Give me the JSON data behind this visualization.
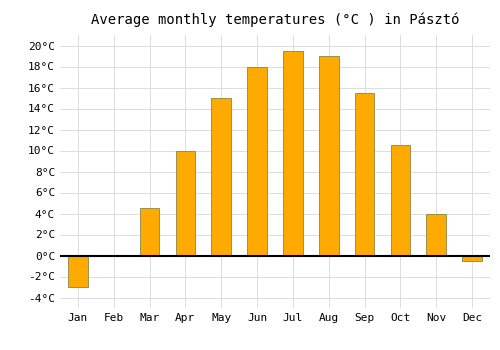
{
  "title": "Average monthly temperatures (°C ) in Pásztó",
  "months": [
    "Jan",
    "Feb",
    "Mar",
    "Apr",
    "May",
    "Jun",
    "Jul",
    "Aug",
    "Sep",
    "Oct",
    "Nov",
    "Dec"
  ],
  "values": [
    -3.0,
    0.0,
    4.5,
    10.0,
    15.0,
    18.0,
    19.5,
    19.0,
    15.5,
    10.5,
    4.0,
    -0.5
  ],
  "bar_color": "#FFAA00",
  "bar_edge_color": "#888844",
  "ylim": [
    -5,
    21
  ],
  "yticks": [
    -4,
    -2,
    0,
    2,
    4,
    6,
    8,
    10,
    12,
    14,
    16,
    18,
    20
  ],
  "background_color": "#ffffff",
  "grid_color": "#dddddd",
  "zero_line_color": "#000000",
  "title_fontsize": 10,
  "tick_fontsize": 8,
  "bar_width": 0.55
}
